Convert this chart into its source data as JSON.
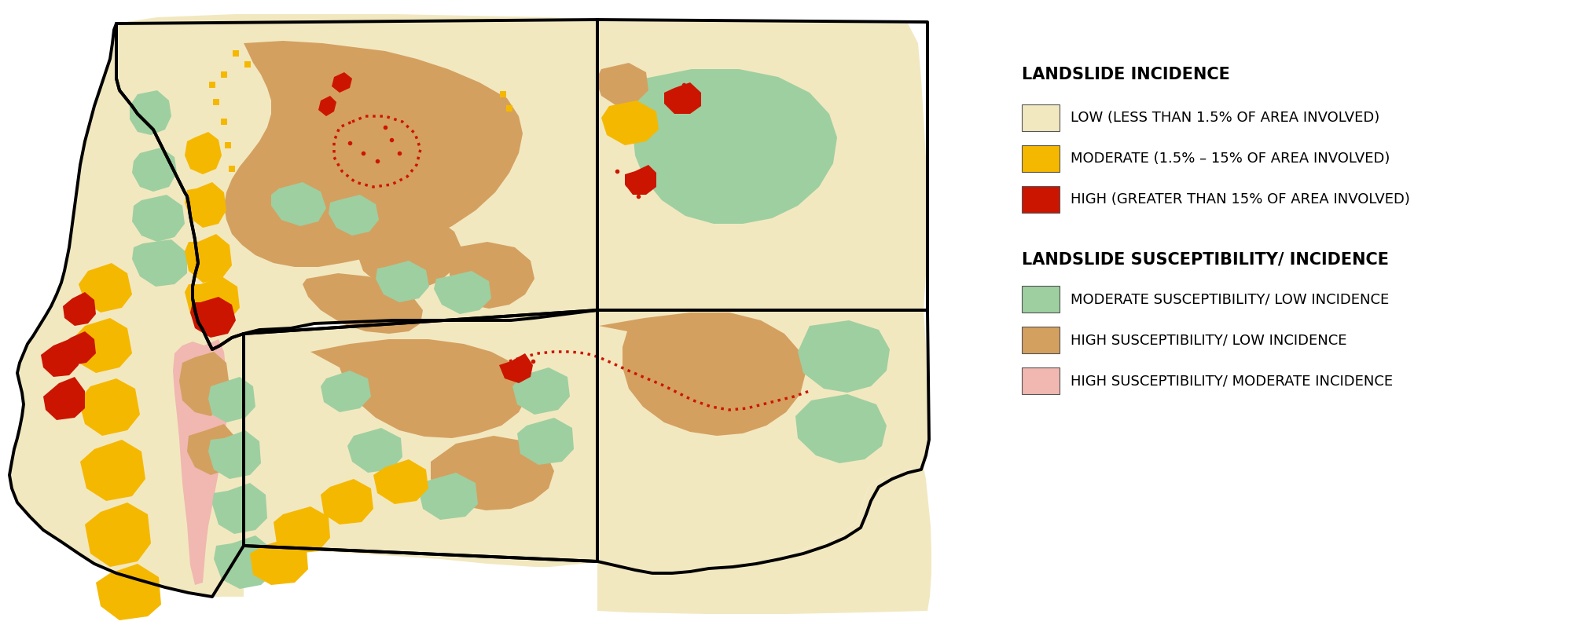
{
  "background_color": "#ffffff",
  "colors": {
    "low": "#f2e8c0",
    "moderate_incidence": "#f5b800",
    "high_incidence": "#cc1500",
    "mod_susc_low_inc": "#9ecfa0",
    "high_susc_low_inc": "#d4a060",
    "high_susc_mod_inc": "#f0b8b0"
  },
  "legend": {
    "incidence_title": "LANDSLIDE INCIDENCE",
    "susc_title": "LANDSLIDE SUSCEPTIBILITY/ INCIDENCE",
    "items": [
      {
        "label": "LOW (LESS THAN 1.5% OF AREA INVOLVED)",
        "color": "#f2e8c0"
      },
      {
        "label": "MODERATE (1.5% – 15% OF AREA INVOLVED)",
        "color": "#f5b800"
      },
      {
        "label": "HIGH (GREATER THAN 15% OF AREA INVOLVED)",
        "color": "#cc1500"
      },
      {
        "label": "MODERATE SUSCEPTIBILITY/ LOW INCIDENCE",
        "color": "#9ecfa0"
      },
      {
        "label": "HIGH SUSCEPTIBILITY/ LOW INCIDENCE",
        "color": "#d4a060"
      },
      {
        "label": "HIGH SUSCEPTIBILITY/ MODERATE INCIDENCE",
        "color": "#f0b8b0"
      }
    ]
  }
}
